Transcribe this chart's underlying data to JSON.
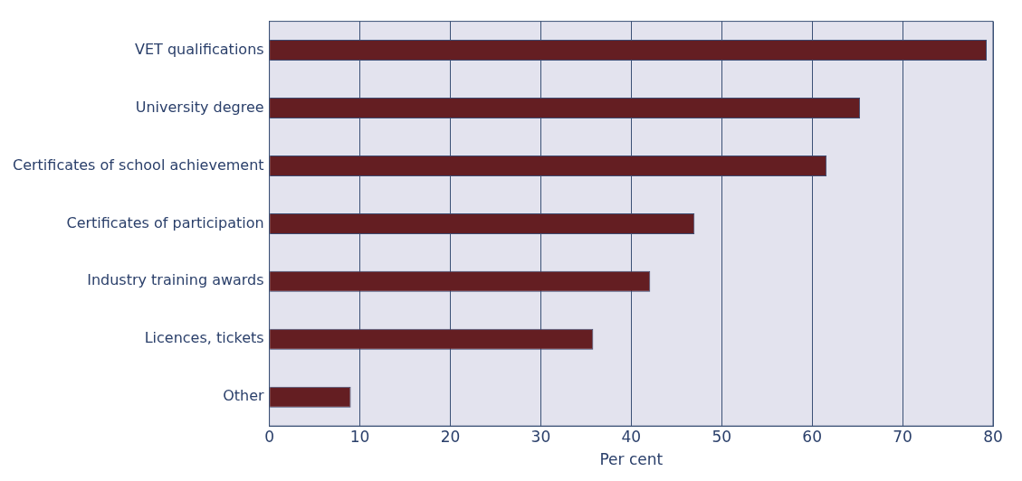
{
  "chart_data": {
    "type": "bar",
    "orientation": "horizontal",
    "xlabel": "Per cent",
    "categories": [
      "VET qualifications",
      "University degree",
      "Certificates of school achievement",
      "Certificates of participation",
      "Industry training awards",
      "Licences, tickets",
      "Other"
    ],
    "values": [
      79.3,
      65.3,
      61.6,
      47.0,
      42.1,
      35.8,
      9.0
    ],
    "color": "#641e22",
    "xlim": [
      0,
      80
    ],
    "xticks": [
      0,
      10,
      20,
      30,
      40,
      50,
      60,
      70,
      80
    ],
    "grid": "x",
    "legend": false
  }
}
